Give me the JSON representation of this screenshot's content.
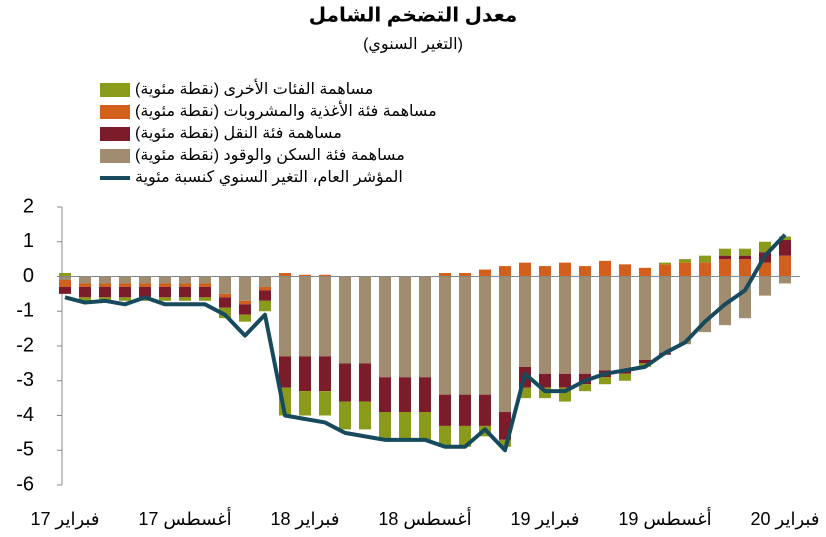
{
  "chart_data": {
    "type": "bar",
    "title": "معدل التضخم الشامل",
    "subtitle": "(التغير السنوي)",
    "categories": [
      "فبراير 17",
      null,
      null,
      null,
      null,
      null,
      "أغسطس 17",
      null,
      null,
      null,
      null,
      null,
      "فبراير 18",
      null,
      null,
      null,
      null,
      null,
      "أغسطس 18",
      null,
      null,
      null,
      null,
      null,
      "فبراير 19",
      null,
      null,
      null,
      null,
      null,
      "أغسطس 19",
      null,
      null,
      null,
      null,
      null,
      "فبراير 20"
    ],
    "ylim": [
      -6,
      2
    ],
    "yticks": [
      -6,
      -5,
      -4,
      -3,
      -2,
      -1,
      0,
      1,
      2
    ],
    "series": [
      {
        "name": "مساهمة الفئات الأخرى (نقطة مئوية)",
        "color": "#8a9a1b",
        "values": [
          0.1,
          -0.1,
          -0.1,
          -0.1,
          -0.1,
          -0.1,
          -0.1,
          -0.1,
          -0.3,
          -0.2,
          -0.3,
          -0.8,
          -0.7,
          -0.7,
          -0.8,
          -0.8,
          -0.8,
          -0.8,
          -0.8,
          -0.6,
          -0.6,
          -0.3,
          -0.2,
          -0.3,
          -0.3,
          -0.4,
          -0.2,
          -0.2,
          -0.2,
          -0.1,
          0.05,
          0.1,
          0.2,
          0.2,
          0.2,
          0.3,
          0.1
        ]
      },
      {
        "name": "مساهمة فئة الأغذية والمشروبات (نقطة مئوية)",
        "color": "#d2601c",
        "values": [
          -0.2,
          -0.1,
          -0.1,
          -0.1,
          -0.1,
          -0.1,
          -0.1,
          -0.1,
          -0.1,
          -0.1,
          -0.1,
          0.1,
          0.05,
          0.05,
          0,
          0,
          0,
          0,
          0,
          0.1,
          0.1,
          0.2,
          0.3,
          0.4,
          0.3,
          0.4,
          0.3,
          0.45,
          0.35,
          0.25,
          0.35,
          0.4,
          0.4,
          0.5,
          0.5,
          0.4,
          0.6
        ]
      },
      {
        "name": "مساهمة فئة النقل (نقطة مئوية)",
        "color": "#7c1c2a",
        "values": [
          -0.2,
          -0.3,
          -0.3,
          -0.3,
          -0.3,
          -0.3,
          -0.3,
          -0.3,
          -0.3,
          -0.3,
          -0.3,
          -0.9,
          -1.0,
          -1.0,
          -1.1,
          -1.1,
          -1.0,
          -1.0,
          -1.0,
          -0.9,
          -0.9,
          -0.9,
          -0.8,
          -0.6,
          -0.4,
          -0.4,
          -0.3,
          -0.2,
          -0.1,
          -0.1,
          -0.05,
          0,
          0,
          0.1,
          0.1,
          0.3,
          0.45
        ]
      },
      {
        "name": "مساهمة فئة السكن والوقود (نقطة مئوية)",
        "color": "#a08c6e",
        "values": [
          -0.1,
          -0.2,
          -0.2,
          -0.2,
          -0.2,
          -0.2,
          -0.2,
          -0.2,
          -0.5,
          -0.7,
          -0.3,
          -2.3,
          -2.3,
          -2.3,
          -2.5,
          -2.5,
          -2.9,
          -2.9,
          -2.9,
          -3.4,
          -3.4,
          -3.4,
          -3.9,
          -2.6,
          -2.8,
          -2.8,
          -2.8,
          -2.7,
          -2.7,
          -2.4,
          -2.2,
          -1.95,
          -1.6,
          -1.4,
          -1.2,
          -0.55,
          -0.2
        ]
      },
      {
        "name": "المؤشر العام، التغير السنوي كنسبة مئوية",
        "color": "#164a5c",
        "type": "line",
        "values": [
          -0.6,
          -0.75,
          -0.7,
          -0.8,
          -0.6,
          -0.8,
          -0.8,
          -0.8,
          -1.1,
          -1.7,
          -1.1,
          -4.0,
          -4.1,
          -4.2,
          -4.5,
          -4.6,
          -4.7,
          -4.7,
          -4.7,
          -4.9,
          -4.9,
          -4.4,
          -5.0,
          -2.8,
          -3.3,
          -3.3,
          -3.0,
          -2.8,
          -2.7,
          -2.6,
          -2.2,
          -1.9,
          -1.3,
          -0.8,
          -0.4,
          0.6,
          1.2
        ]
      }
    ]
  }
}
